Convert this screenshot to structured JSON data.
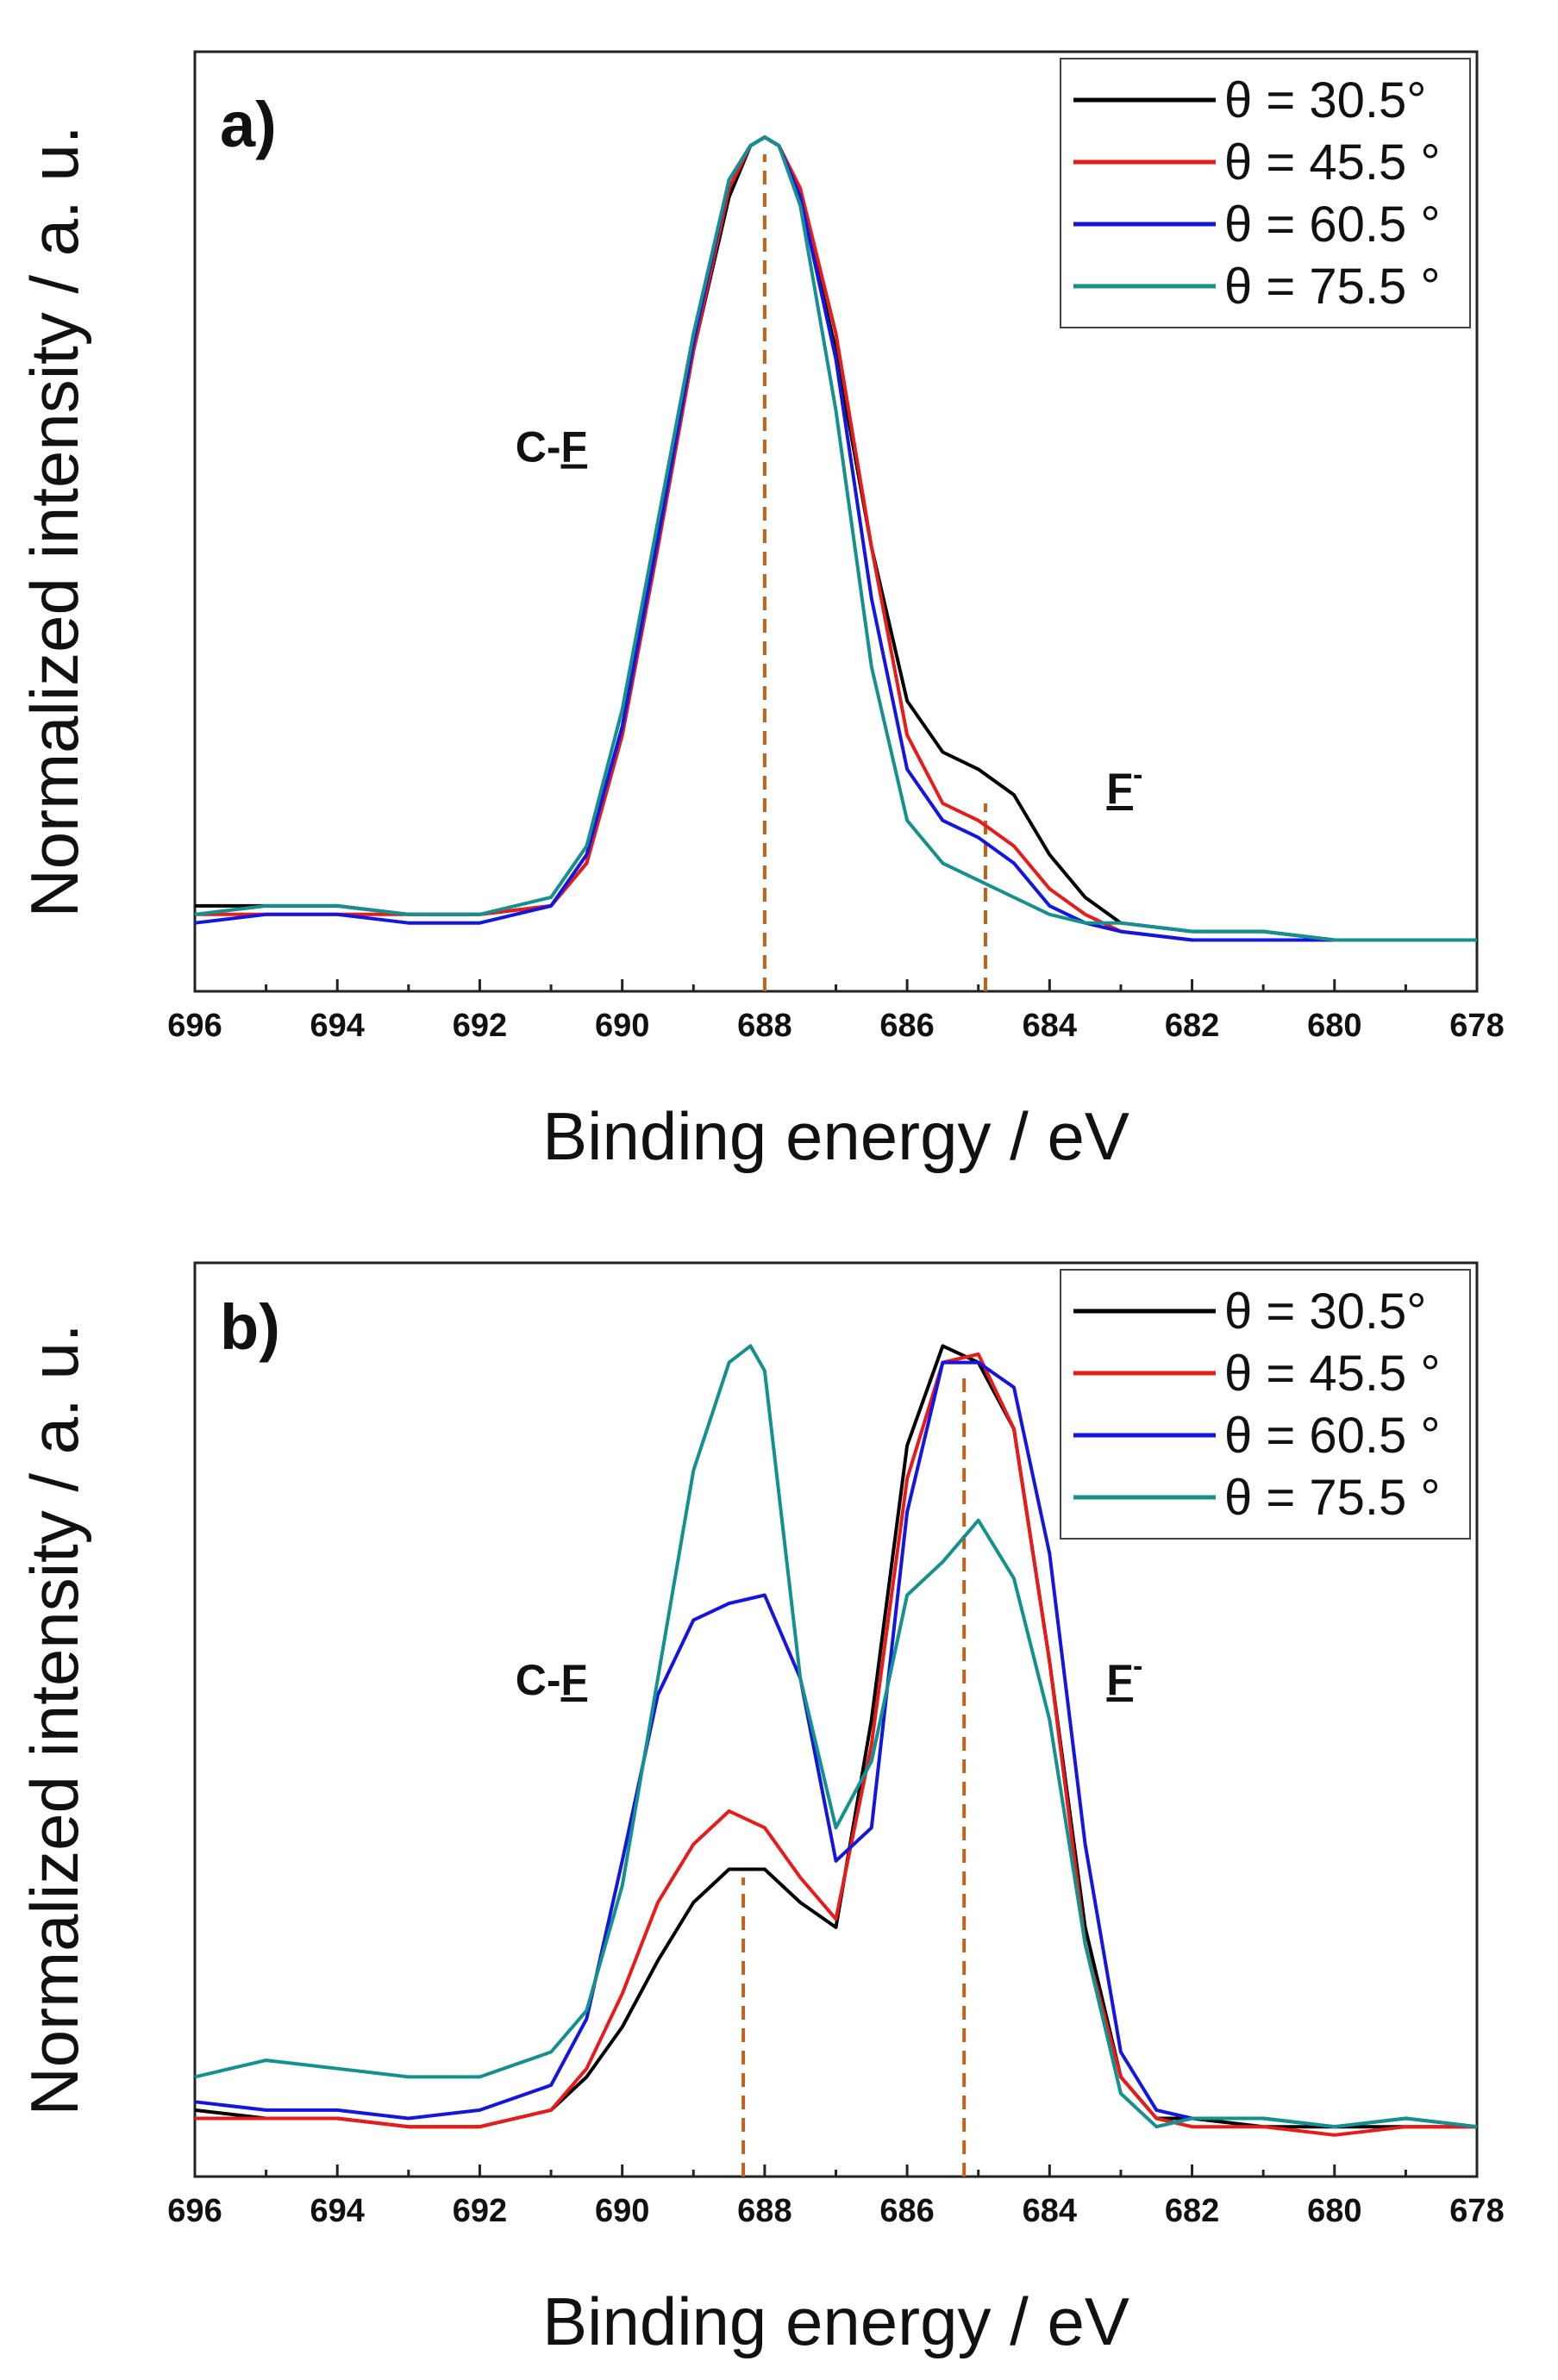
{
  "chart_data": [
    {
      "panel": "a)",
      "type": "line",
      "xlabel": "Binding energy / eV",
      "ylabel": "Normalized intensity / a. u.",
      "xlim": [
        696,
        678
      ],
      "ylim": [
        0,
        1.1
      ],
      "x_ticks": [
        "696",
        "694",
        "692",
        "690",
        "688",
        "686",
        "684",
        "682",
        "680",
        "678"
      ],
      "legend": {
        "placement": "top-right"
      },
      "annotations": [
        {
          "text": "C-F",
          "underline": "F",
          "x": 691.5,
          "y": 0.62
        },
        {
          "text": "F-",
          "display": "F",
          "superscript": "-",
          "x": 683.2,
          "y": 0.22
        }
      ],
      "ref_lines": [
        {
          "x": 688.0,
          "y_top": 0.98
        },
        {
          "x": 684.9,
          "y_top": 0.22
        }
      ],
      "series": [
        {
          "name": "θ = 30.5°",
          "color": "#000000",
          "x": [
            696,
            695,
            694,
            693,
            692,
            691,
            690.5,
            690,
            689.5,
            689,
            688.5,
            688.2,
            688,
            687.8,
            687.5,
            687,
            686.5,
            686,
            685.5,
            685,
            684.5,
            684,
            683.5,
            683,
            682,
            681,
            680,
            679,
            678
          ],
          "y": [
            0.1,
            0.1,
            0.1,
            0.09,
            0.09,
            0.1,
            0.15,
            0.3,
            0.52,
            0.75,
            0.93,
            0.99,
            1.0,
            0.99,
            0.93,
            0.75,
            0.52,
            0.34,
            0.28,
            0.26,
            0.23,
            0.16,
            0.11,
            0.08,
            0.07,
            0.07,
            0.06,
            0.06,
            0.06
          ]
        },
        {
          "name": "θ = 45.5 °",
          "color": "#e81b1b",
          "x": [
            696,
            695,
            694,
            693,
            692,
            691,
            690.5,
            690,
            689.5,
            689,
            688.5,
            688.2,
            688,
            687.8,
            687.5,
            687,
            686.5,
            686,
            685.5,
            685,
            684.5,
            684,
            683.5,
            683,
            682,
            681,
            680,
            679,
            678
          ],
          "y": [
            0.09,
            0.09,
            0.09,
            0.09,
            0.09,
            0.1,
            0.15,
            0.3,
            0.52,
            0.75,
            0.94,
            0.99,
            1.0,
            0.99,
            0.94,
            0.77,
            0.52,
            0.3,
            0.22,
            0.2,
            0.17,
            0.12,
            0.09,
            0.07,
            0.06,
            0.06,
            0.06,
            0.06,
            0.06
          ]
        },
        {
          "name": "θ = 60.5 °",
          "color": "#1515e0",
          "x": [
            696,
            695,
            694,
            693,
            692,
            691,
            690.5,
            690,
            689.5,
            689,
            688.5,
            688.2,
            688,
            687.8,
            687.5,
            687,
            686.5,
            686,
            685.5,
            685,
            684.5,
            684,
            683.5,
            683,
            682,
            681,
            680,
            679,
            678
          ],
          "y": [
            0.08,
            0.09,
            0.09,
            0.08,
            0.08,
            0.1,
            0.16,
            0.31,
            0.53,
            0.76,
            0.95,
            0.99,
            1.0,
            0.99,
            0.93,
            0.74,
            0.46,
            0.26,
            0.2,
            0.18,
            0.15,
            0.1,
            0.08,
            0.07,
            0.06,
            0.06,
            0.06,
            0.06,
            0.06
          ]
        },
        {
          "name": "θ = 75.5 °",
          "color": "#14908e",
          "x": [
            696,
            695,
            694,
            693,
            692,
            691,
            690.5,
            690,
            689.5,
            689,
            688.5,
            688.2,
            688,
            687.8,
            687.5,
            687,
            686.5,
            686,
            685.5,
            685,
            684.5,
            684,
            683.5,
            683,
            682,
            681,
            680,
            679,
            678
          ],
          "y": [
            0.09,
            0.1,
            0.1,
            0.09,
            0.09,
            0.11,
            0.17,
            0.33,
            0.55,
            0.77,
            0.95,
            0.99,
            1.0,
            0.99,
            0.92,
            0.68,
            0.38,
            0.2,
            0.15,
            0.13,
            0.11,
            0.09,
            0.08,
            0.08,
            0.07,
            0.07,
            0.06,
            0.06,
            0.06
          ]
        }
      ]
    },
    {
      "panel": "b)",
      "type": "line",
      "xlabel": "Binding energy / eV",
      "ylabel": "Normalized intensity / a. u.",
      "xlim": [
        696,
        678
      ],
      "ylim": [
        0,
        1.1
      ],
      "x_ticks": [
        "696",
        "694",
        "692",
        "690",
        "688",
        "686",
        "684",
        "682",
        "680",
        "678"
      ],
      "legend": {
        "placement": "top-right"
      },
      "annotations": [
        {
          "text": "C-F",
          "underline": "F",
          "x": 691.5,
          "y": 0.58
        },
        {
          "text": "F-",
          "display": "F",
          "superscript": "-",
          "x": 683.2,
          "y": 0.58
        }
      ],
      "ref_lines": [
        {
          "x": 688.3,
          "y_top": 0.36
        },
        {
          "x": 685.2,
          "y_top": 0.97
        }
      ],
      "series": [
        {
          "name": "θ = 30.5°",
          "color": "#000000",
          "x": [
            696,
            695,
            694,
            693,
            692,
            691,
            690.5,
            690,
            689.5,
            689,
            688.5,
            688,
            687.5,
            687,
            686.5,
            686,
            685.5,
            685,
            684.5,
            684,
            683.5,
            683,
            682.5,
            682,
            681,
            680,
            679,
            678
          ],
          "y": [
            0.08,
            0.07,
            0.07,
            0.06,
            0.06,
            0.08,
            0.12,
            0.18,
            0.26,
            0.33,
            0.37,
            0.37,
            0.33,
            0.3,
            0.55,
            0.88,
            1.0,
            0.98,
            0.9,
            0.62,
            0.3,
            0.12,
            0.07,
            0.07,
            0.06,
            0.06,
            0.06,
            0.06
          ]
        },
        {
          "name": "θ = 45.5 °",
          "color": "#e81b1b",
          "x": [
            696,
            695,
            694,
            693,
            692,
            691,
            690.5,
            690,
            689.5,
            689,
            688.5,
            688,
            687.5,
            687,
            686.5,
            686,
            685.5,
            685,
            684.5,
            684,
            683.5,
            683,
            682.5,
            682,
            681,
            680,
            679,
            678
          ],
          "y": [
            0.07,
            0.07,
            0.07,
            0.06,
            0.06,
            0.08,
            0.13,
            0.22,
            0.33,
            0.4,
            0.44,
            0.42,
            0.36,
            0.31,
            0.52,
            0.84,
            0.98,
            0.99,
            0.9,
            0.62,
            0.28,
            0.12,
            0.07,
            0.06,
            0.06,
            0.05,
            0.06,
            0.06
          ]
        },
        {
          "name": "θ = 60.5 °",
          "color": "#1515e0",
          "x": [
            696,
            695,
            694,
            693,
            692,
            691,
            690.5,
            690,
            689.5,
            689,
            688.5,
            688,
            687.5,
            687,
            686.5,
            686,
            685.5,
            685,
            684.5,
            684,
            683.5,
            683,
            682.5,
            682,
            681,
            680,
            679,
            678
          ],
          "y": [
            0.09,
            0.08,
            0.08,
            0.07,
            0.08,
            0.11,
            0.19,
            0.38,
            0.58,
            0.67,
            0.69,
            0.7,
            0.6,
            0.38,
            0.42,
            0.8,
            0.98,
            0.98,
            0.95,
            0.75,
            0.4,
            0.15,
            0.08,
            0.07,
            0.07,
            0.06,
            0.07,
            0.06
          ]
        },
        {
          "name": "θ = 75.5 °",
          "color": "#14908e",
          "x": [
            696,
            695,
            694,
            693,
            692,
            691,
            690.5,
            690,
            689.5,
            689,
            688.5,
            688.2,
            688,
            687.5,
            687,
            686.5,
            686,
            685.5,
            685,
            684.5,
            684,
            683.5,
            683,
            682.5,
            682,
            681,
            680,
            679,
            678
          ],
          "y": [
            0.12,
            0.14,
            0.13,
            0.12,
            0.12,
            0.15,
            0.2,
            0.35,
            0.6,
            0.85,
            0.98,
            1.0,
            0.97,
            0.6,
            0.42,
            0.5,
            0.7,
            0.74,
            0.79,
            0.72,
            0.55,
            0.28,
            0.1,
            0.06,
            0.07,
            0.07,
            0.06,
            0.07,
            0.06
          ]
        }
      ]
    }
  ]
}
